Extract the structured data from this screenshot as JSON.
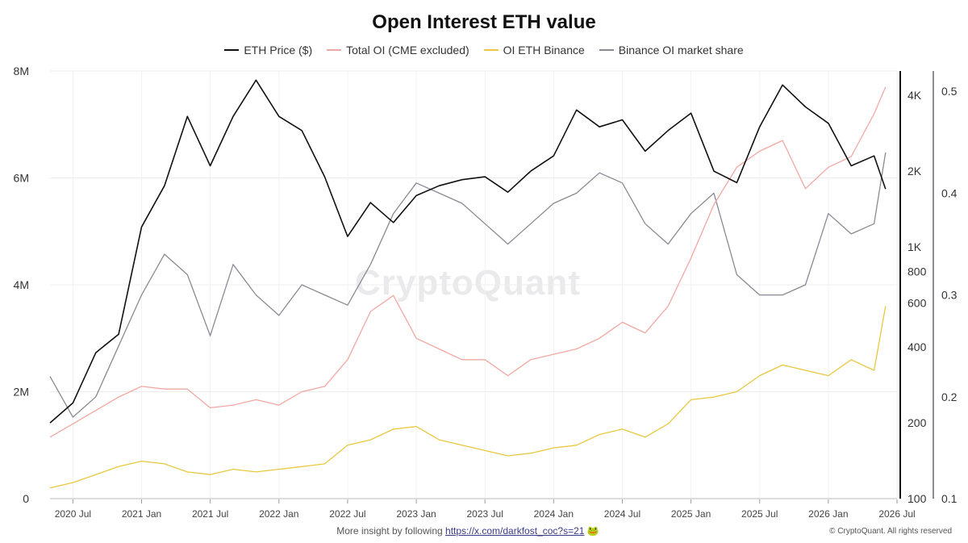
{
  "title": "Open Interest ETH value",
  "watermark": "CryptoQuant",
  "footer": {
    "text": "More insight by following",
    "link": "https://x.com/darkfost_coc?s=21",
    "emoji": "🐸",
    "copyright": "© CryptoQuant. All rights reserved"
  },
  "colors": {
    "eth_price": "#111111",
    "total_oi": "#f2a8a2",
    "oi_binance": "#e8c840",
    "binance_share": "#8a8a96"
  },
  "chart_data": {
    "type": "line",
    "title": "Open Interest ETH value",
    "legend_position": "top",
    "grid": true,
    "x_ticks": [
      "2020 Jul",
      "2021 Jan",
      "2021 Jul",
      "2022 Jan",
      "2022 Jul",
      "2023 Jan",
      "2023 Jul",
      "2024 Jan",
      "2024 Jul",
      "2025 Jan",
      "2025 Jul",
      "2026 Jan",
      "2026 Jul"
    ],
    "x_range": [
      "2020-05",
      "2026-07"
    ],
    "axes": {
      "left": {
        "ticks": [
          "0",
          "2M",
          "4M",
          "6M",
          "8M"
        ],
        "range": [
          0,
          8000000
        ]
      },
      "right1": {
        "ticks": [
          "100",
          "200",
          "400",
          "600",
          "800",
          "1K",
          "2K",
          "4K"
        ],
        "scale": "log",
        "range": [
          100,
          5000
        ]
      },
      "right2": {
        "ticks": [
          "0.1",
          "0.2",
          "0.3",
          "0.4",
          "0.5"
        ],
        "range": [
          0.1,
          0.52
        ]
      }
    },
    "dates": [
      "2020-05",
      "2020-07",
      "2020-09",
      "2020-11",
      "2021-01",
      "2021-03",
      "2021-05",
      "2021-07",
      "2021-09",
      "2021-11",
      "2022-01",
      "2022-03",
      "2022-05",
      "2022-07",
      "2022-09",
      "2022-11",
      "2023-01",
      "2023-03",
      "2023-05",
      "2023-07",
      "2023-09",
      "2023-11",
      "2024-01",
      "2024-03",
      "2024-05",
      "2024-07",
      "2024-09",
      "2024-11",
      "2025-01",
      "2025-03",
      "2025-05",
      "2025-07",
      "2025-09",
      "2025-11",
      "2026-01",
      "2026-03",
      "2026-05",
      "2026-06"
    ],
    "series": [
      {
        "name": "ETH Price ($)",
        "axis": "right1",
        "color": "#111111",
        "values": [
          200,
          240,
          380,
          450,
          1200,
          1750,
          3300,
          2100,
          3300,
          4600,
          3300,
          2900,
          1900,
          1100,
          1500,
          1250,
          1600,
          1750,
          1850,
          1900,
          1650,
          2000,
          2300,
          3500,
          3000,
          3200,
          2400,
          2900,
          3400,
          2000,
          1800,
          3000,
          4400,
          3600,
          3100,
          2100,
          2300,
          1700
        ]
      },
      {
        "name": "Total OI (CME excluded)",
        "axis": "left",
        "color": "#f2a8a2",
        "values": [
          1150000,
          1400000,
          1650000,
          1900000,
          2100000,
          2050000,
          2050000,
          1700000,
          1750000,
          1850000,
          1750000,
          2000000,
          2100000,
          2600000,
          3500000,
          3800000,
          3000000,
          2800000,
          2600000,
          2600000,
          2300000,
          2600000,
          2700000,
          2800000,
          3000000,
          3300000,
          3100000,
          3600000,
          4500000,
          5500000,
          6200000,
          6500000,
          6700000,
          5800000,
          6200000,
          6400000,
          7200000,
          7700000
        ]
      },
      {
        "name": "OI ETH Binance",
        "axis": "left",
        "color": "#e8c840",
        "values": [
          200000,
          300000,
          450000,
          600000,
          700000,
          650000,
          500000,
          450000,
          550000,
          500000,
          550000,
          600000,
          650000,
          1000000,
          1100000,
          1300000,
          1350000,
          1100000,
          1000000,
          900000,
          800000,
          850000,
          950000,
          1000000,
          1200000,
          1300000,
          1150000,
          1400000,
          1850000,
          1900000,
          2000000,
          2300000,
          2500000,
          2400000,
          2300000,
          2600000,
          2400000,
          3600000
        ]
      },
      {
        "name": "Binance OI market share",
        "axis": "right2",
        "color": "#8a8a96",
        "values": [
          0.22,
          0.18,
          0.2,
          0.25,
          0.3,
          0.34,
          0.32,
          0.26,
          0.33,
          0.3,
          0.28,
          0.31,
          0.3,
          0.29,
          0.33,
          0.38,
          0.41,
          0.4,
          0.39,
          0.37,
          0.35,
          0.37,
          0.39,
          0.4,
          0.42,
          0.41,
          0.37,
          0.35,
          0.38,
          0.4,
          0.32,
          0.3,
          0.3,
          0.31,
          0.38,
          0.36,
          0.37,
          0.44
        ]
      }
    ]
  }
}
